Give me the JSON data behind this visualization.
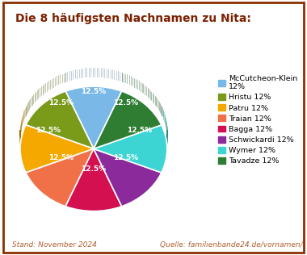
{
  "title": "Die 8 häufigsten Nachnamen zu Nita:",
  "legend_labels": [
    "McCutcheon-Klein\n12%",
    "Hristu 12%",
    "Patru 12%",
    "Traian 12%",
    "Bagga 12%",
    "Schwickardi 12%",
    "Wymer 12%",
    "Tavadze 12%"
  ],
  "values": [
    12.5,
    12.5,
    12.5,
    12.5,
    12.5,
    12.5,
    12.5,
    12.5
  ],
  "colors": [
    "#7ab8e8",
    "#7a9a1a",
    "#f5a800",
    "#f07048",
    "#d41050",
    "#8b2a9b",
    "#3dd4d4",
    "#2e7d32"
  ],
  "startangle": 67.5,
  "title_color": "#7b2000",
  "footer_left": "Stand: November 2024",
  "footer_right": "Quelle: familienbande24.de/vornamen/",
  "footer_color": "#b06030",
  "background_color": "#ffffff",
  "border_color": "#8b3000",
  "figsize": [
    3.8,
    3.16
  ],
  "dpi": 100
}
